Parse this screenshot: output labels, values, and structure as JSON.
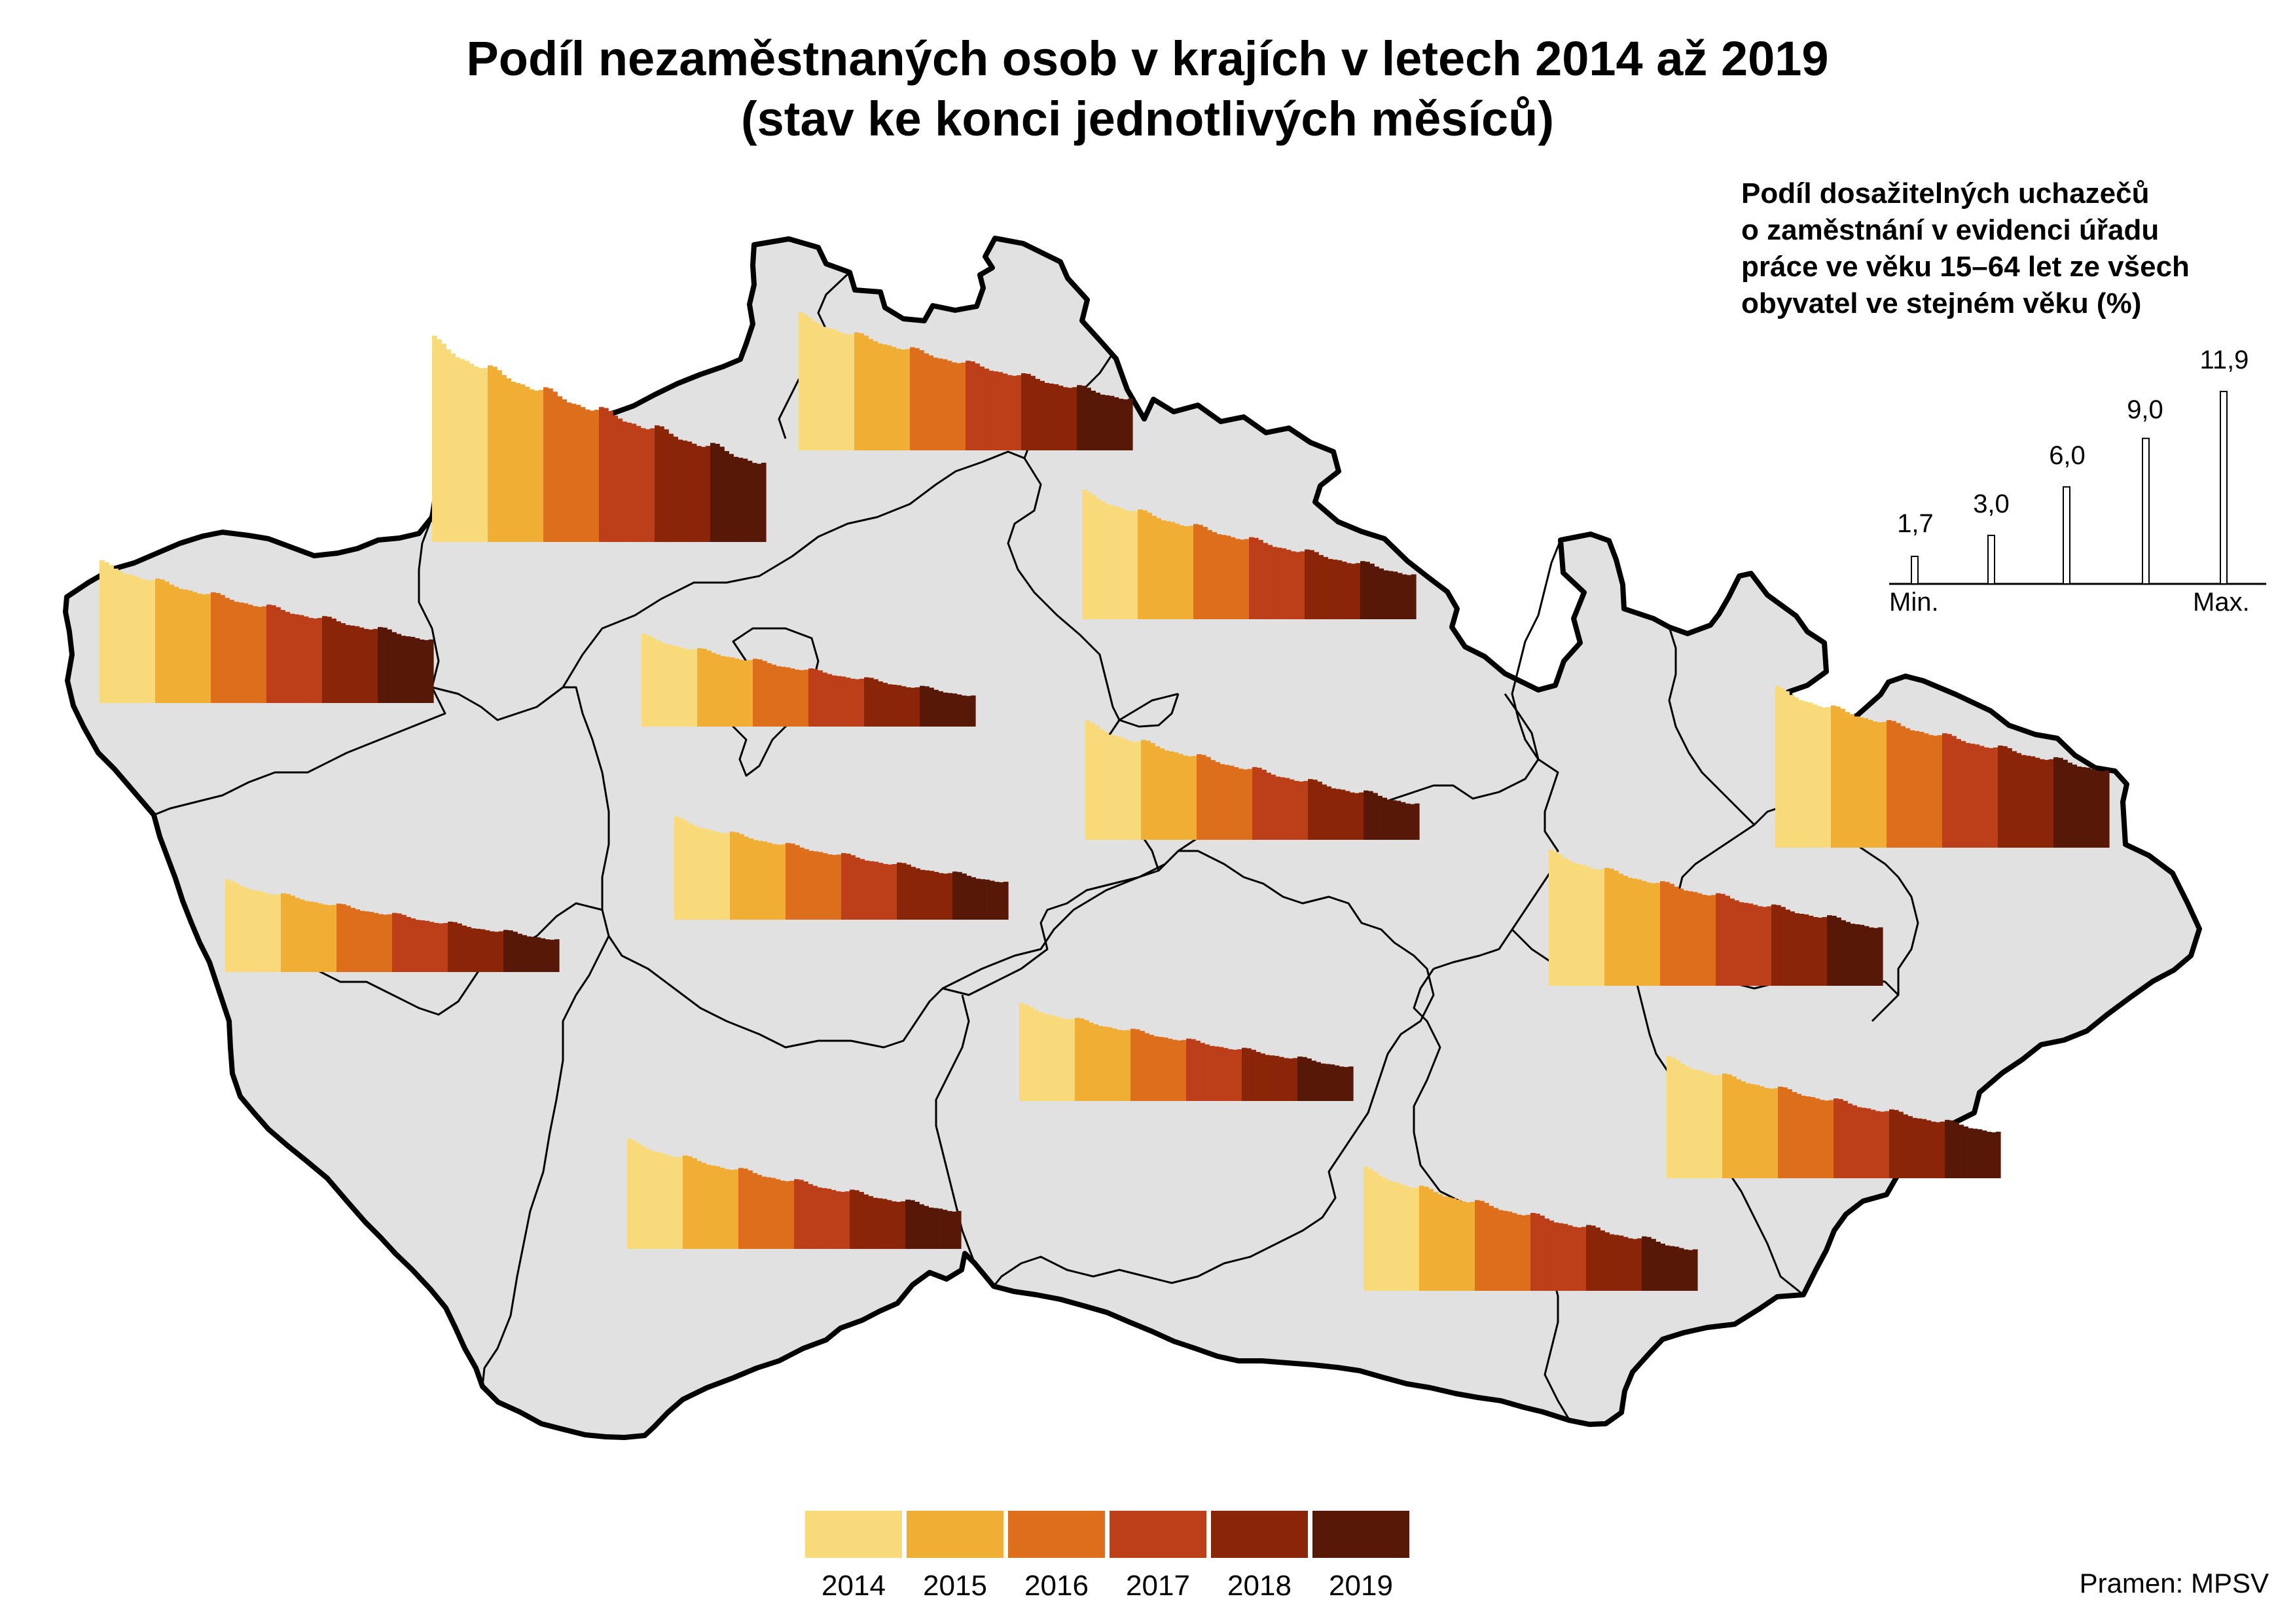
{
  "title_line1": "Podíl nezaměstnaných osob v krajích v letech 2014 až 2019",
  "title_line2": "(stav ke konci jednotlivých měsíců)",
  "legend": {
    "title_lines": [
      "Podíl dosažitelných uchazečů",
      "o zaměstnání v evidenci úřadu",
      "práce ve věku 15–64 let ze všech",
      "obyvatel ve stejném věku (%)"
    ],
    "values": [
      "1,7",
      "3,0",
      "6,0",
      "9,0",
      "11,9"
    ],
    "scale_numbers": [
      1.7,
      3.0,
      6.0,
      9.0,
      11.9
    ],
    "min_label": "Min.",
    "max_label": "Max."
  },
  "years": [
    "2014",
    "2015",
    "2016",
    "2017",
    "2018",
    "2019"
  ],
  "year_colors": [
    "#F9DA7A",
    "#F0AE35",
    "#DD6E1C",
    "#BC3F19",
    "#8A2507",
    "#571807"
  ],
  "map_colors": {
    "land": "#E1E1E1",
    "border": "#000000"
  },
  "source": "Pramen: MPSV",
  "chart_data": {
    "type": "bar",
    "unit": "%",
    "series": [
      {
        "start": 8.2,
        "end": 3.7
      },
      {
        "start": 11.8,
        "end": 4.6
      },
      {
        "start": 7.9,
        "end": 3.0
      },
      {
        "start": 7.4,
        "end": 2.6
      },
      {
        "start": 5.3,
        "end": 1.8
      },
      {
        "start": 5.9,
        "end": 2.2
      },
      {
        "start": 6.8,
        "end": 2.1
      },
      {
        "start": 5.3,
        "end": 1.9
      },
      {
        "start": 5.6,
        "end": 2.0
      },
      {
        "start": 6.3,
        "end": 2.2
      },
      {
        "start": 7.1,
        "end": 2.4
      },
      {
        "start": 7.8,
        "end": 3.4
      },
      {
        "start": 7.0,
        "end": 2.7
      },
      {
        "start": 9.3,
        "end": 4.5
      }
    ]
  }
}
